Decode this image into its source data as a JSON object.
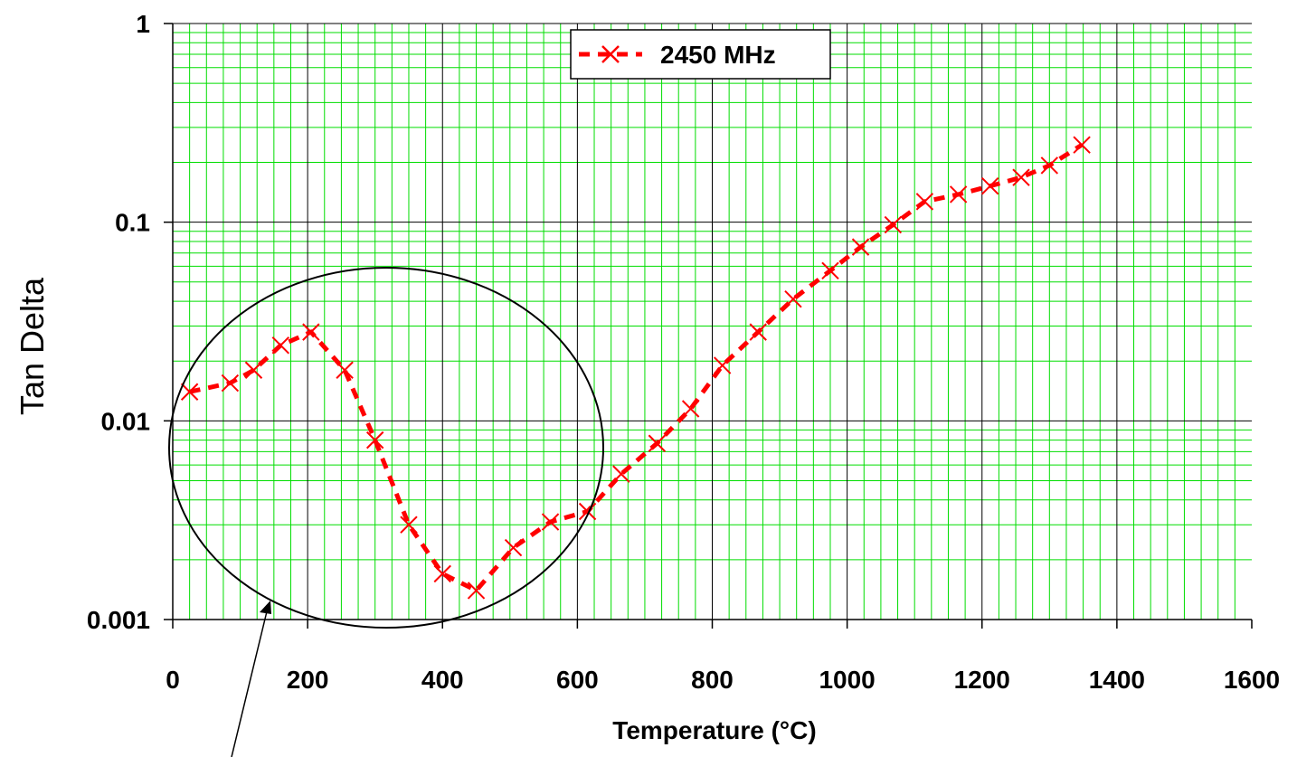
{
  "chart_data": {
    "type": "scatter",
    "xlabel": "Temperature (°C)",
    "ylabel": "Tan Delta",
    "xlim": [
      0,
      1600
    ],
    "ylim": [
      0.001,
      1
    ],
    "yscale": "log",
    "x_ticks": [
      "0",
      "200",
      "400",
      "600",
      "800",
      "1000",
      "1200",
      "1400",
      "1600"
    ],
    "y_ticks": [
      "0.001",
      "0.01",
      "0.1",
      "1"
    ],
    "grid": true,
    "legend_position": "top-center",
    "series": [
      {
        "name": "2450 MHz",
        "color": "#ff0000",
        "marker": "x",
        "line": "dashed",
        "points": [
          [
            25,
            0.014
          ],
          [
            85,
            0.0155
          ],
          [
            120,
            0.018
          ],
          [
            160,
            0.024
          ],
          [
            205,
            0.028
          ],
          [
            255,
            0.018
          ],
          [
            300,
            0.008
          ],
          [
            350,
            0.003
          ],
          [
            400,
            0.0017
          ],
          [
            450,
            0.0014
          ],
          [
            505,
            0.0023
          ],
          [
            560,
            0.0031
          ],
          [
            615,
            0.0035
          ],
          [
            665,
            0.0054
          ],
          [
            718,
            0.0077
          ],
          [
            768,
            0.0115
          ],
          [
            815,
            0.019
          ],
          [
            868,
            0.028
          ],
          [
            920,
            0.041
          ],
          [
            975,
            0.057
          ],
          [
            1020,
            0.075
          ],
          [
            1068,
            0.097
          ],
          [
            1115,
            0.127
          ],
          [
            1165,
            0.138
          ],
          [
            1212,
            0.152
          ],
          [
            1258,
            0.168
          ],
          [
            1300,
            0.193
          ],
          [
            1348,
            0.245
          ]
        ]
      }
    ]
  },
  "annotation": {
    "shape": "ellipse-with-arrow"
  }
}
